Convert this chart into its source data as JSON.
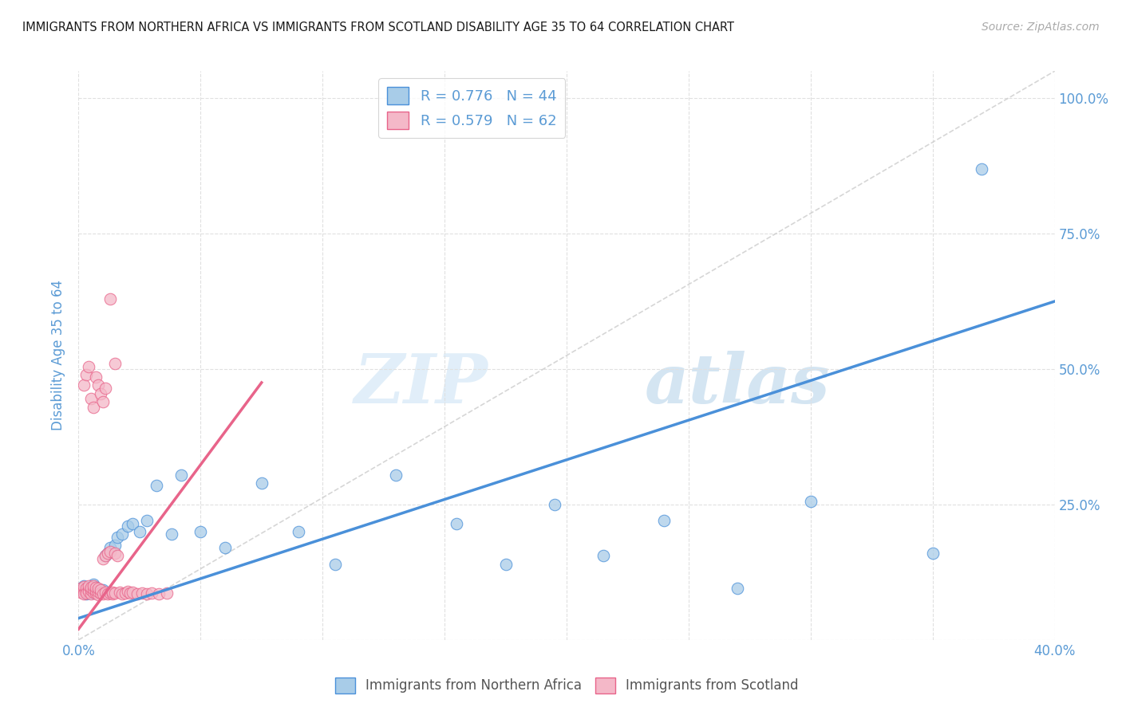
{
  "title": "IMMIGRANTS FROM NORTHERN AFRICA VS IMMIGRANTS FROM SCOTLAND DISABILITY AGE 35 TO 64 CORRELATION CHART",
  "source": "Source: ZipAtlas.com",
  "ylabel": "Disability Age 35 to 64",
  "xlim": [
    0.0,
    0.4
  ],
  "ylim": [
    0.0,
    1.05
  ],
  "xticks": [
    0.0,
    0.05,
    0.1,
    0.15,
    0.2,
    0.25,
    0.3,
    0.35,
    0.4
  ],
  "xticklabels": [
    "0.0%",
    "",
    "",
    "",
    "",
    "",
    "",
    "",
    "40.0%"
  ],
  "yticks": [
    0.0,
    0.25,
    0.5,
    0.75,
    1.0
  ],
  "yticklabels": [
    "",
    "25.0%",
    "50.0%",
    "75.0%",
    "100.0%"
  ],
  "legend1_r": "R = 0.776",
  "legend1_n": "N = 44",
  "legend2_r": "R = 0.579",
  "legend2_n": "N = 62",
  "color_blue": "#a8cce8",
  "color_pink": "#f4b8c8",
  "color_line_blue": "#4a90d9",
  "color_line_pink": "#e8648a",
  "color_diag": "#cccccc",
  "color_axis_label": "#5b9bd5",
  "watermark_zip": "ZIP",
  "watermark_atlas": "atlas",
  "blue_scatter_x": [
    0.001,
    0.002,
    0.002,
    0.003,
    0.003,
    0.004,
    0.004,
    0.005,
    0.005,
    0.006,
    0.006,
    0.007,
    0.007,
    0.008,
    0.009,
    0.01,
    0.011,
    0.012,
    0.013,
    0.015,
    0.016,
    0.018,
    0.02,
    0.022,
    0.025,
    0.028,
    0.032,
    0.038,
    0.042,
    0.05,
    0.06,
    0.075,
    0.09,
    0.105,
    0.13,
    0.155,
    0.175,
    0.195,
    0.215,
    0.24,
    0.27,
    0.3,
    0.35,
    0.37
  ],
  "blue_scatter_y": [
    0.095,
    0.09,
    0.1,
    0.085,
    0.095,
    0.092,
    0.088,
    0.098,
    0.093,
    0.087,
    0.103,
    0.091,
    0.097,
    0.094,
    0.089,
    0.092,
    0.155,
    0.16,
    0.17,
    0.175,
    0.19,
    0.195,
    0.21,
    0.215,
    0.2,
    0.22,
    0.285,
    0.195,
    0.305,
    0.2,
    0.17,
    0.29,
    0.2,
    0.14,
    0.305,
    0.215,
    0.14,
    0.25,
    0.155,
    0.22,
    0.095,
    0.255,
    0.16,
    0.87
  ],
  "pink_scatter_x": [
    0.001,
    0.001,
    0.002,
    0.002,
    0.002,
    0.003,
    0.003,
    0.003,
    0.004,
    0.004,
    0.004,
    0.005,
    0.005,
    0.005,
    0.006,
    0.006,
    0.006,
    0.007,
    0.007,
    0.007,
    0.008,
    0.008,
    0.008,
    0.009,
    0.009,
    0.01,
    0.01,
    0.011,
    0.011,
    0.012,
    0.012,
    0.013,
    0.013,
    0.014,
    0.014,
    0.015,
    0.015,
    0.016,
    0.017,
    0.018,
    0.019,
    0.02,
    0.021,
    0.022,
    0.024,
    0.026,
    0.028,
    0.03,
    0.033,
    0.036,
    0.002,
    0.003,
    0.004,
    0.005,
    0.006,
    0.007,
    0.008,
    0.009,
    0.01,
    0.011,
    0.013,
    0.015
  ],
  "pink_scatter_y": [
    0.088,
    0.095,
    0.092,
    0.098,
    0.085,
    0.09,
    0.096,
    0.087,
    0.093,
    0.089,
    0.1,
    0.085,
    0.092,
    0.097,
    0.088,
    0.094,
    0.1,
    0.086,
    0.091,
    0.097,
    0.083,
    0.089,
    0.095,
    0.087,
    0.093,
    0.085,
    0.15,
    0.088,
    0.155,
    0.085,
    0.16,
    0.087,
    0.163,
    0.085,
    0.088,
    0.16,
    0.086,
    0.155,
    0.088,
    0.085,
    0.087,
    0.09,
    0.086,
    0.088,
    0.085,
    0.087,
    0.085,
    0.086,
    0.085,
    0.086,
    0.47,
    0.49,
    0.505,
    0.445,
    0.43,
    0.485,
    0.47,
    0.455,
    0.44,
    0.465,
    0.63,
    0.51
  ],
  "blue_line_x": [
    0.0,
    0.4
  ],
  "blue_line_y": [
    0.04,
    0.625
  ],
  "pink_line_x": [
    0.0,
    0.075
  ],
  "pink_line_y": [
    0.02,
    0.475
  ],
  "diag_line_x": [
    0.0,
    0.4
  ],
  "diag_line_y": [
    0.0,
    1.05
  ],
  "grid_color": "#e0e0e0",
  "bg_color": "#ffffff"
}
